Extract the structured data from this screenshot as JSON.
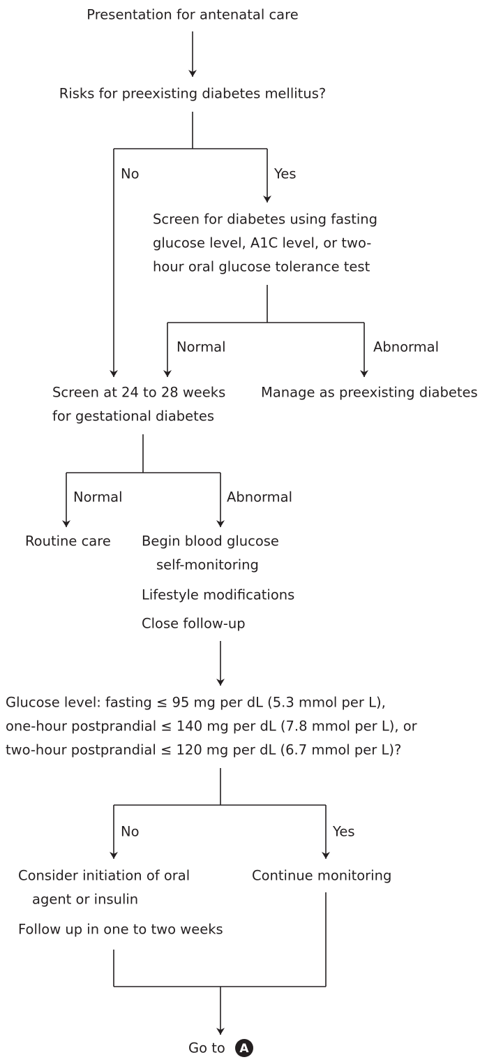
{
  "nodes": [
    {
      "lines": [
        "Presentation for antenatal care"
      ]
    },
    {
      "lines": [
        "Risks for preexisting diabetes mellitus?"
      ]
    },
    {
      "lines": [
        "Screen for diabetes using fasting",
        "glucose level, A1C level, or two-",
        "hour oral glucose tolerance test"
      ]
    },
    {
      "lines": [
        "Screen at 24 to 28 weeks",
        "for gestational diabetes"
      ]
    },
    {
      "lines": [
        "Manage as preexisting diabetes"
      ]
    },
    {
      "lines": [
        "Routine care"
      ]
    },
    {
      "lines": [
        "Begin blood glucose",
        "self-monitoring",
        "Lifestyle modifications",
        "Close follow-up"
      ]
    },
    {
      "lines": [
        "Glucose level: fasting ≤ 95 mg per dL (5.3 mmol per L),",
        "one-hour postprandial ≤ 140 mg per dL (7.8 mmol per L), or",
        "two-hour postprandial ≤ 120 mg per dL (6.7 mmol per L)?"
      ]
    },
    {
      "lines": [
        "Consider initiation of oral",
        "agent or insulin",
        "Follow up in one to two weeks"
      ]
    },
    {
      "lines": [
        "Continue monitoring"
      ]
    },
    {
      "lines": [
        "Go to"
      ],
      "badge": "A"
    }
  ],
  "edge_labels": [
    "No",
    "Yes",
    "Normal",
    "Abnormal",
    "Normal",
    "Abnormal",
    "No",
    "Yes"
  ]
}
